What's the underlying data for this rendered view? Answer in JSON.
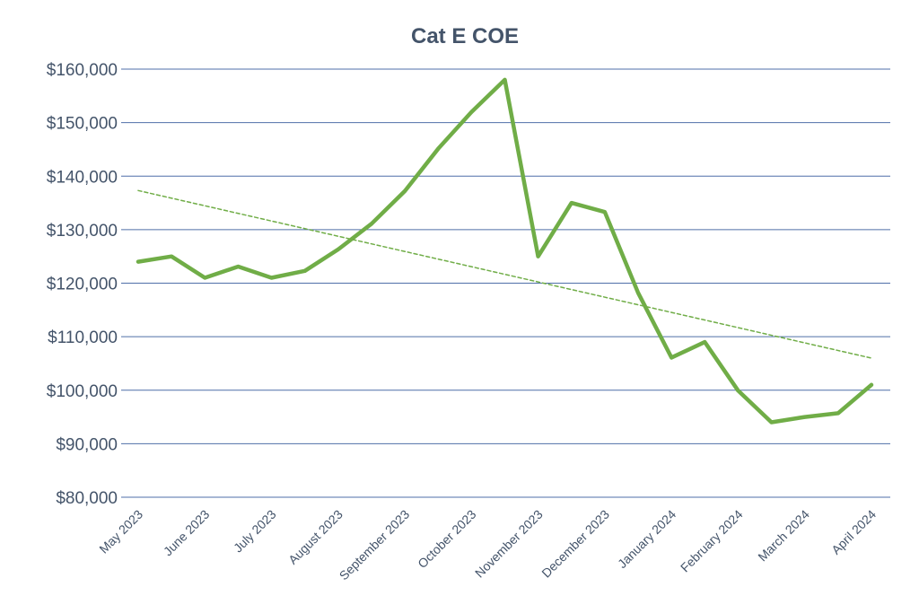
{
  "chart_data": {
    "type": "line",
    "title": "Cat E COE",
    "xlabel": "",
    "ylabel": "",
    "ylim": [
      80000,
      160000
    ],
    "y_ticks": [
      "$80,000",
      "$90,000",
      "$100,000",
      "$110,000",
      "$120,000",
      "$130,000",
      "$140,000",
      "$150,000",
      "$160,000"
    ],
    "y_tick_values": [
      80000,
      90000,
      100000,
      110000,
      120000,
      130000,
      140000,
      150000,
      160000
    ],
    "categories": [
      "May 2023",
      "June 2023",
      "July 2023",
      "August 2023",
      "September 2023",
      "October 2023",
      "November 2023",
      "December 2023",
      "January 2024",
      "February 2024",
      "March 2024",
      "April 2024"
    ],
    "grid": true,
    "series": [
      {
        "name": "Cat E COE",
        "color": "#70AD47",
        "x": [
          0,
          0.5,
          1,
          1.5,
          2,
          2.5,
          3,
          3.5,
          4,
          4.5,
          5,
          5.5,
          6,
          6.5,
          7,
          7.5,
          8,
          8.5,
          9,
          9.5,
          10,
          10.5,
          11
        ],
        "values": [
          124000,
          125000,
          121000,
          123100,
          121000,
          122300,
          126300,
          131100,
          137200,
          145100,
          152000,
          158000,
          125000,
          135000,
          133300,
          118200,
          106100,
          109000,
          99900,
          94000,
          95000,
          95700,
          101000
        ]
      },
      {
        "name": "Linear trendline",
        "color": "#70AD47",
        "dashed": true,
        "x": [
          0,
          11
        ],
        "values": [
          137300,
          106000
        ]
      }
    ]
  }
}
